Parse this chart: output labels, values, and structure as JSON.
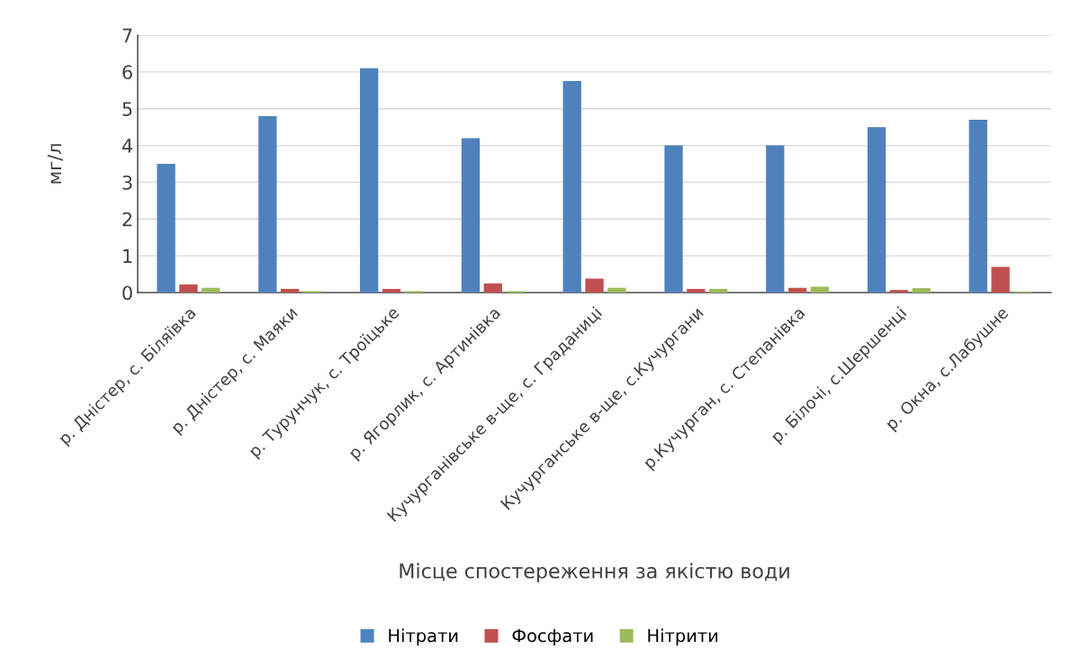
{
  "chart_data": {
    "type": "bar",
    "xlabel": "Місце спостереження за якістю води",
    "ylabel": "мг/л",
    "categories": [
      "р. Дністер, с. Біляївка",
      "р. Дністер, с. Маяки",
      "р. Турунчук, с. Троїцьке",
      "р. Ягорлик, с. Артинівка",
      "Кучурганівське в-ще, с. Граданиці",
      "Кучурганське в-ще, с.Кучургани",
      "р.Кучурган, с. Степанівка",
      "р. Білочі, с.Шершенці",
      "р. Окна, с.Лабушне"
    ],
    "series": [
      {
        "name": "Нітрати",
        "color": "#4f81bd",
        "values": [
          3.5,
          4.8,
          6.1,
          4.2,
          5.75,
          4.0,
          4.0,
          4.5,
          4.7
        ]
      },
      {
        "name": "Фосфати",
        "color": "#c0504d",
        "values": [
          0.22,
          0.1,
          0.1,
          0.25,
          0.38,
          0.1,
          0.13,
          0.07,
          0.7
        ]
      },
      {
        "name": "Нітрити",
        "color": "#9bbb59",
        "values": [
          0.13,
          0.04,
          0.04,
          0.04,
          0.13,
          0.1,
          0.16,
          0.12,
          0.03
        ]
      }
    ],
    "ylim": [
      0,
      7
    ],
    "yticks": [
      0,
      1,
      2,
      3,
      4,
      5,
      6,
      7
    ],
    "grid": "y",
    "legend": "bottom"
  }
}
